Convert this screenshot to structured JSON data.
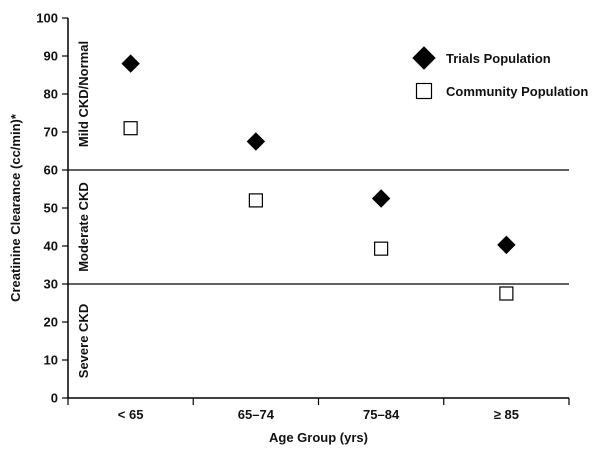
{
  "chart_data": {
    "type": "scatter",
    "xlabel": "Age Group (yrs)",
    "ylabel": "Creatinine Clearance (cc/min)*",
    "categories": [
      "< 65",
      "65–74",
      "75–84",
      "≥ 85"
    ],
    "ylim": [
      0,
      100
    ],
    "yticks": [
      0,
      10,
      20,
      30,
      40,
      50,
      60,
      70,
      80,
      90,
      100
    ],
    "grid": false,
    "legend_position": "top-right",
    "series": [
      {
        "name": "Trials Population",
        "marker": "filled-diamond",
        "color": "#000000",
        "values": [
          88,
          67.5,
          52.5,
          40.3
        ]
      },
      {
        "name": "Community Population",
        "marker": "open-square",
        "color": "#000000",
        "values": [
          71,
          52,
          39.3,
          27.5
        ]
      }
    ],
    "reference_lines": [
      60,
      30
    ],
    "bands": [
      {
        "label": "Mild CKD/Normal",
        "range": [
          60,
          100
        ]
      },
      {
        "label": "Moderate CKD",
        "range": [
          30,
          60
        ]
      },
      {
        "label": "Severe CKD",
        "range": [
          0,
          30
        ]
      }
    ]
  }
}
